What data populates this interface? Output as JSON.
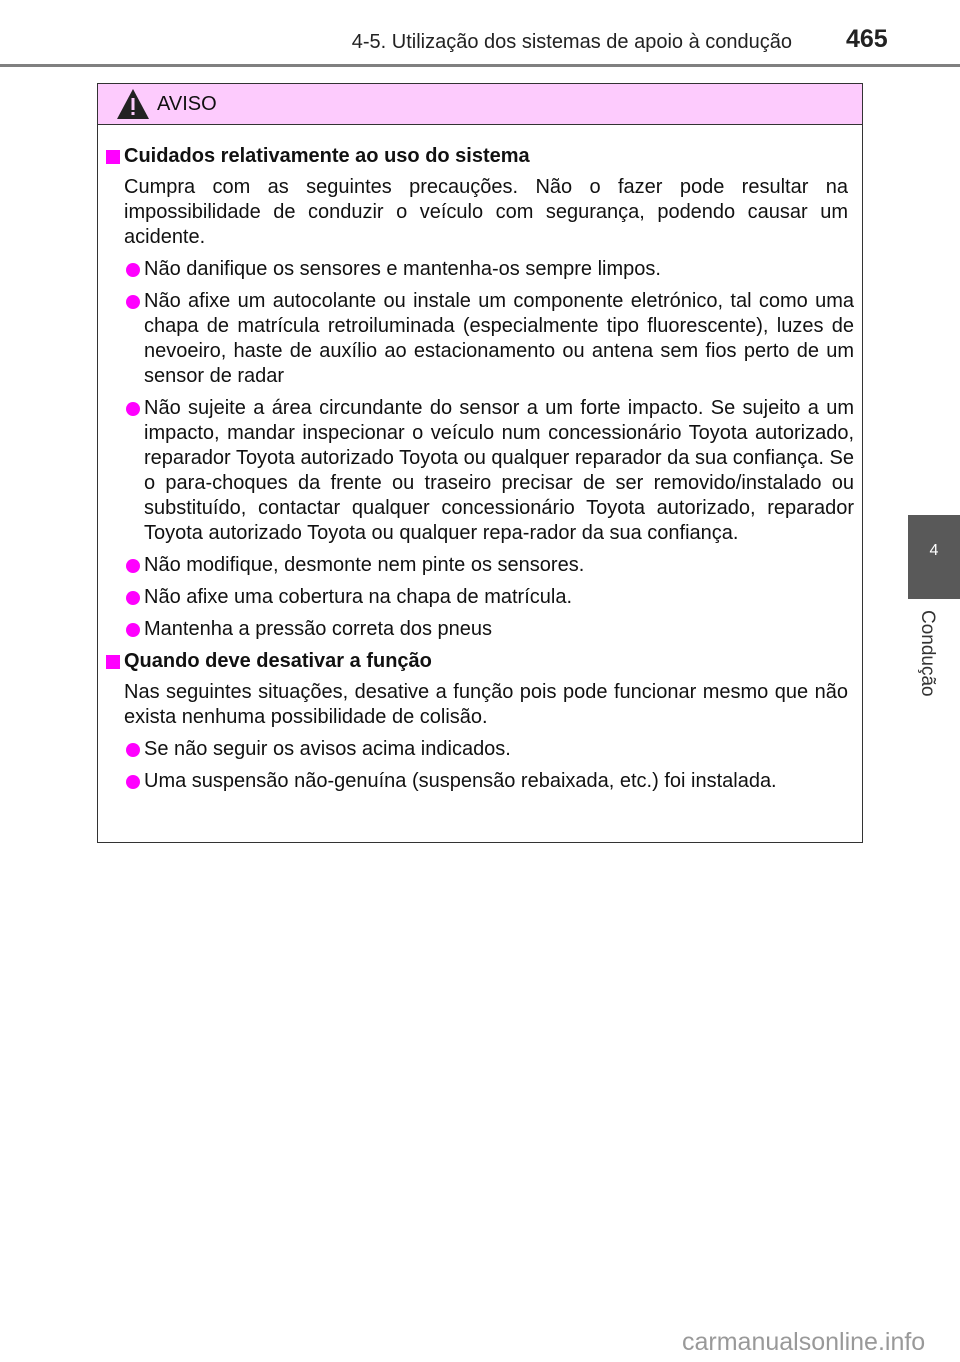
{
  "header": {
    "section": "4-5. Utilização dos sistemas de apoio à condução",
    "page_number": "465"
  },
  "side_tab": {
    "number": "4",
    "label": "Condução"
  },
  "warning": {
    "title": "AVISO",
    "icon": "warning-triangle-icon",
    "accent": "#ff00ff",
    "header_bg": "#fdcbfd",
    "sections": [
      {
        "heading": "Cuidados relativamente ao uso do sistema",
        "paragraph": "Cumpra com as seguintes precauções. Não o fazer pode resultar na impossibilidade de conduzir o veículo com segurança, podendo causar um acidente.",
        "items": [
          "Não danifique os sensores e mantenha-os sempre limpos.",
          "Não afixe um autocolante ou instale um componente eletrónico, tal como uma chapa de matrícula retroiluminada (especialmente tipo fluorescente), luzes de nevoeiro, haste de auxílio ao estacionamento ou antena sem fios perto de um sensor de radar",
          "Não sujeite a área circundante do sensor a um forte impacto. Se sujeito a um impacto, mandar inspecionar o veículo num concessionário Toyota autorizado, reparador Toyota autorizado Toyota ou qualquer reparador da sua confiança. Se o para-choques da frente ou traseiro precisar de ser removido/instalado ou substituído, contactar qualquer concessionário Toyota autorizado, reparador Toyota autorizado Toyota ou qualquer repa-rador da sua confiança.",
          "Não modifique, desmonte nem pinte os sensores.",
          "Não afixe uma cobertura na chapa de matrícula.",
          "Mantenha a pressão correta dos pneus"
        ]
      },
      {
        "heading": "Quando deve desativar a função",
        "paragraph": "Nas seguintes situações, desative a função pois pode funcionar mesmo que não exista nenhuma possibilidade de colisão.",
        "items": [
          "Se não seguir os avisos acima indicados.",
          "Uma suspensão não-genuína (suspensão rebaixada, etc.) foi instalada."
        ]
      }
    ]
  },
  "watermark": "carmanualsonline.info"
}
